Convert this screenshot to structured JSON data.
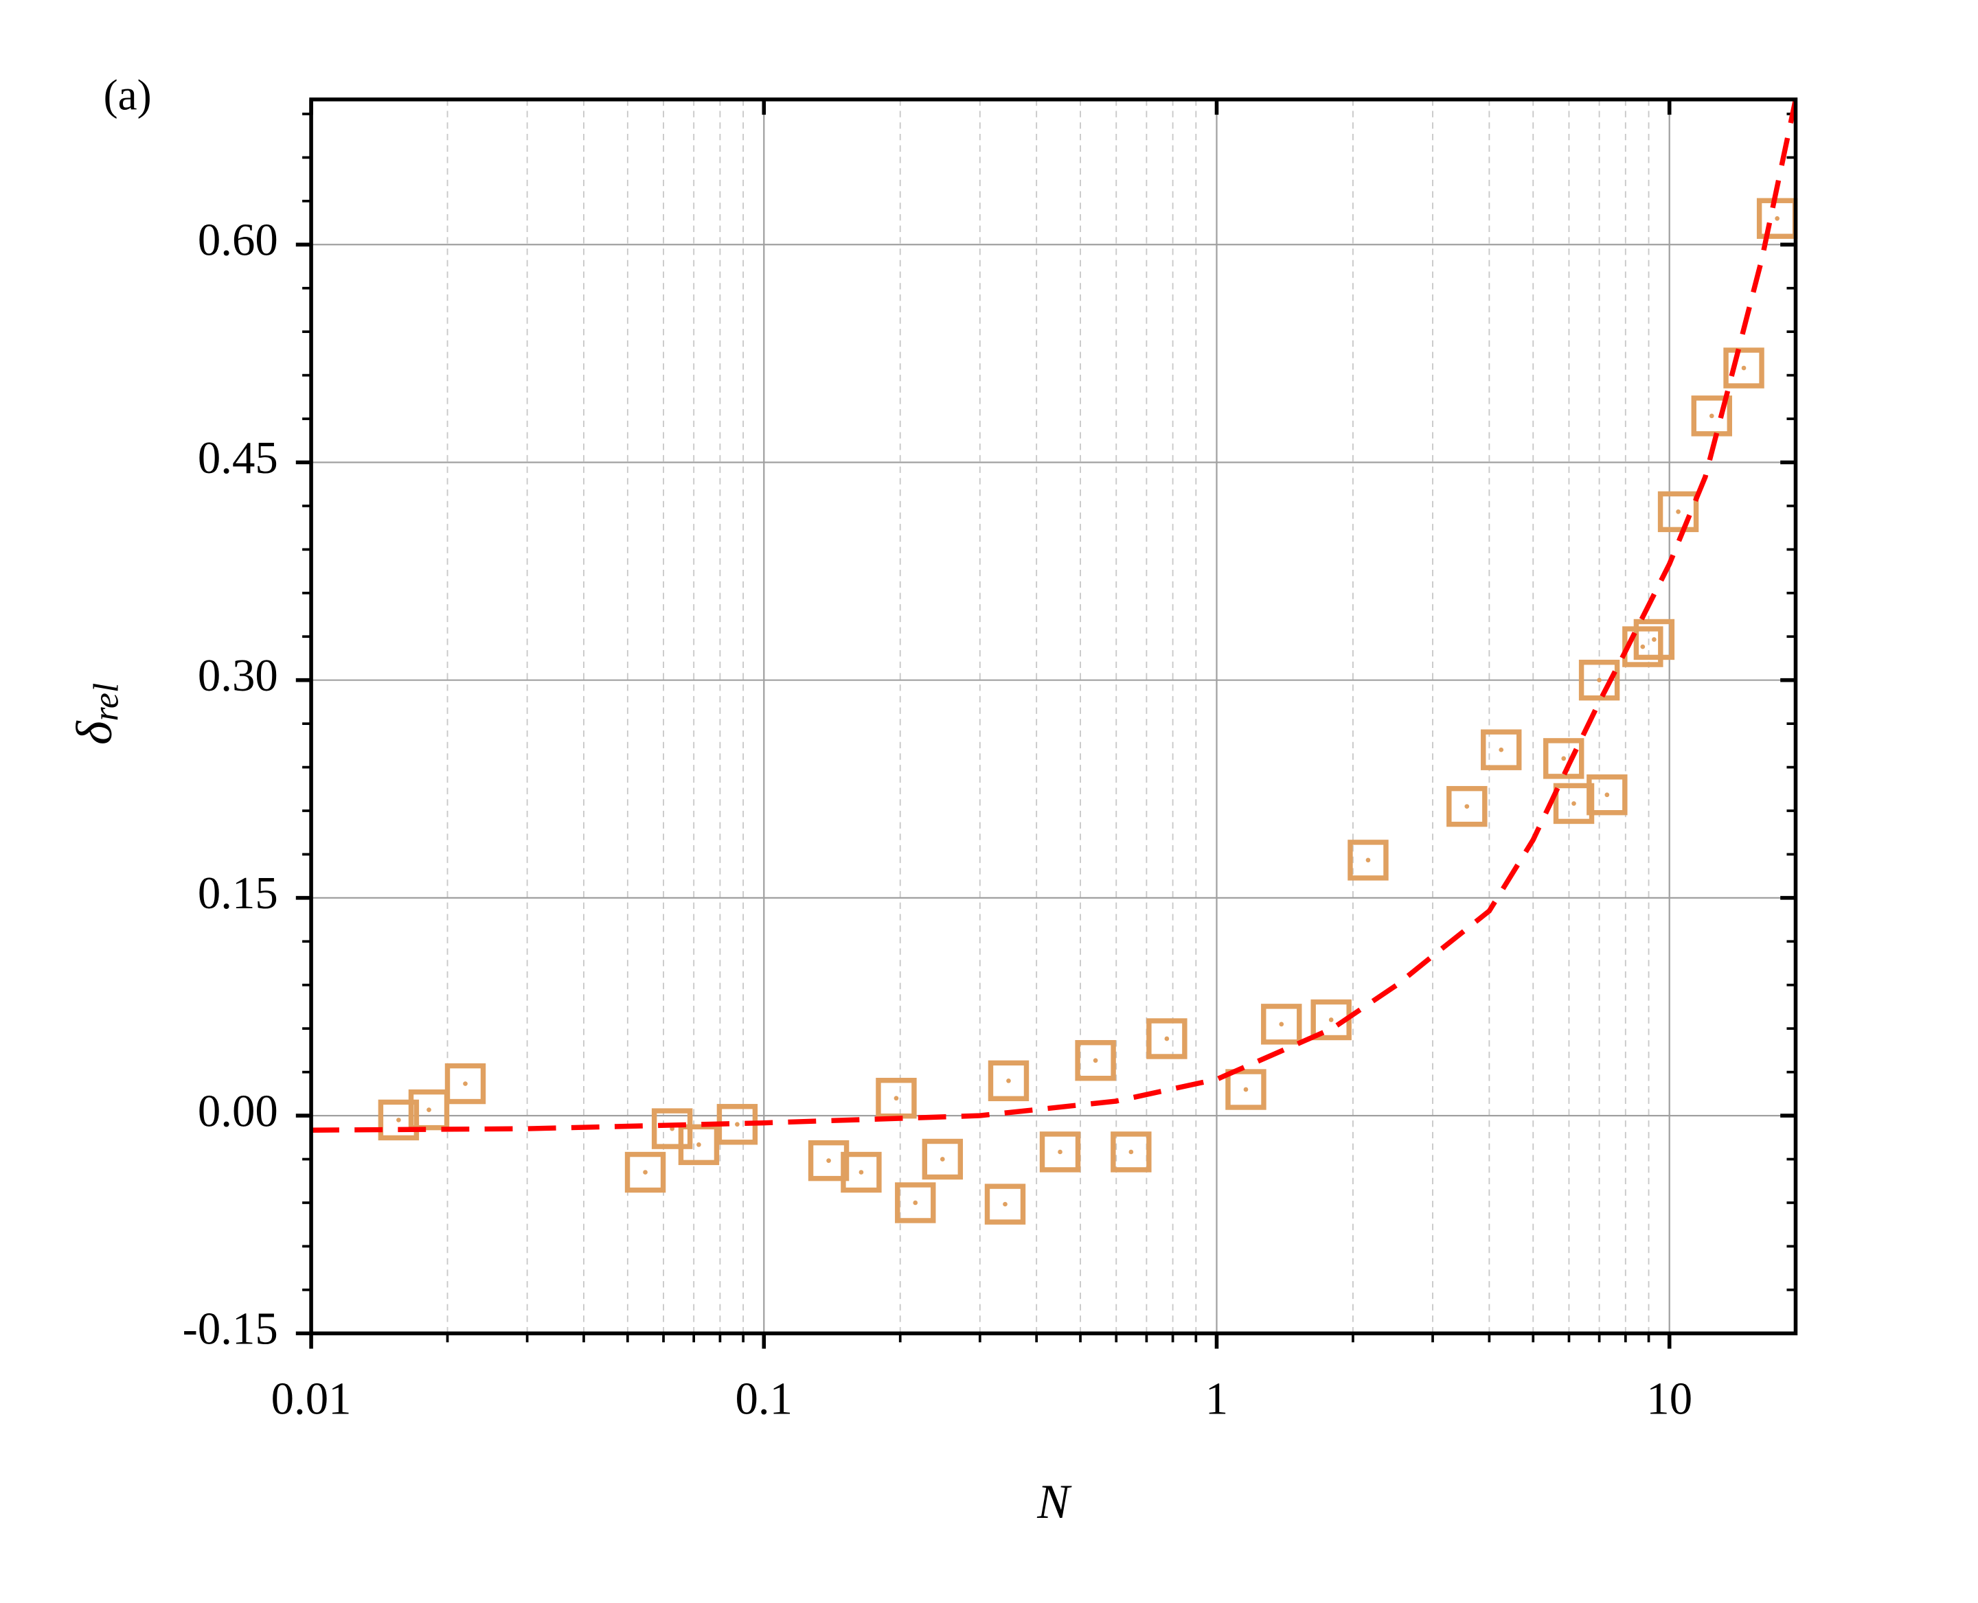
{
  "chart_data": {
    "type": "scatter",
    "panel_label": "(a)",
    "xlabel": "N",
    "ylabel": "δ",
    "ylabel_sub": "rel",
    "xscale": "log",
    "xlim": [
      0.01,
      19
    ],
    "ylim": [
      -0.15,
      0.7
    ],
    "xticks": [
      0.01,
      0.1,
      1,
      10
    ],
    "xminor": [
      0.02,
      0.03,
      0.04,
      0.05,
      0.06,
      0.07,
      0.08,
      0.09,
      0.2,
      0.3,
      0.4,
      0.5,
      0.6,
      0.7,
      0.8,
      0.9,
      2,
      3,
      4,
      5,
      6,
      7,
      8,
      9
    ],
    "yticks": [
      -0.15,
      {
        "value": 0,
        "label": "0.00"
      },
      0.15,
      {
        "value": 0.3,
        "label": "0.30"
      },
      0.45,
      {
        "value": 0.6,
        "label": "0.60"
      }
    ],
    "yminor": [
      -0.12,
      -0.09,
      -0.06,
      -0.03,
      0.03,
      0.06,
      0.09,
      0.12,
      0.18,
      0.21,
      0.24,
      0.27,
      0.33,
      0.36,
      0.39,
      0.42,
      0.48,
      0.51,
      0.54,
      0.57,
      0.63,
      0.66,
      0.69
    ],
    "grid": true,
    "series": [
      {
        "type": "scatter",
        "color": "#e0a060",
        "x": [
          0.0156,
          0.0182,
          0.0219,
          0.0547,
          0.0627,
          0.0718,
          0.0873,
          0.139,
          0.164,
          0.196,
          0.216,
          0.248,
          0.341,
          0.347,
          0.451,
          0.54,
          0.647,
          0.776,
          1.16,
          1.39,
          1.79,
          2.16,
          3.57,
          4.25,
          5.84,
          6.15,
          7.0,
          7.28,
          8.73,
          9.25,
          10.46,
          12.4,
          14.6,
          17.3
        ],
        "values": [
          -0.003,
          0.004,
          0.022,
          -0.039,
          -0.009,
          -0.02,
          -0.006,
          -0.031,
          -0.039,
          0.012,
          -0.06,
          -0.03,
          -0.061,
          0.024,
          -0.025,
          0.038,
          -0.025,
          0.053,
          0.018,
          0.063,
          0.066,
          0.176,
          0.213,
          0.252,
          0.246,
          0.215,
          0.3,
          0.221,
          0.323,
          0.328,
          0.416,
          0.482,
          0.515,
          0.618
        ]
      },
      {
        "type": "line",
        "color": "#ff0000",
        "dashed": true,
        "x": [
          0.01,
          0.03,
          0.1,
          0.3,
          0.6,
          1,
          1.4,
          1.8,
          2.5,
          3,
          4,
          5,
          6,
          7,
          8,
          10,
          12,
          14,
          16,
          19
        ],
        "values": [
          -0.01,
          -0.009,
          -0.005,
          0.0,
          0.01,
          0.025,
          0.045,
          0.06,
          0.09,
          0.11,
          0.141,
          0.19,
          0.242,
          0.285,
          0.32,
          0.38,
          0.44,
          0.52,
          0.59,
          0.7
        ]
      }
    ]
  }
}
